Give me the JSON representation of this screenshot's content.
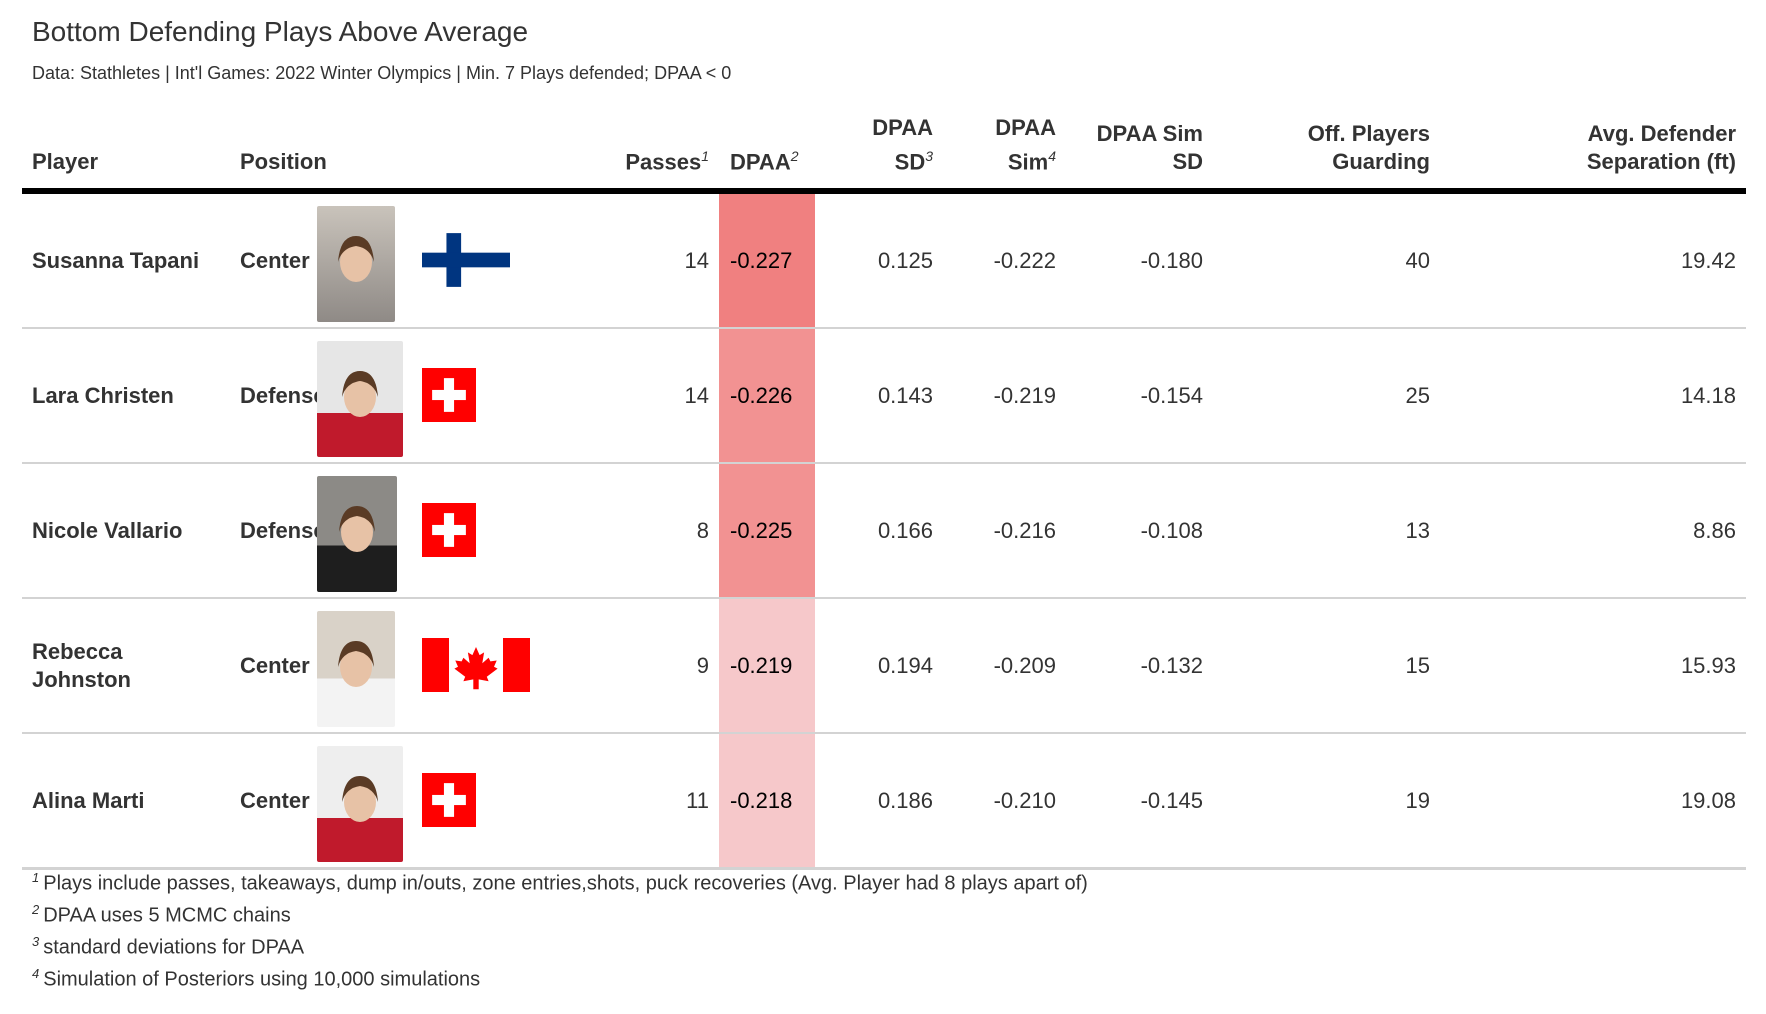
{
  "title": "Bottom Defending Plays Above Average",
  "subtitle": "Data: Stathletes | Int'l Games: 2022 Winter Olympics | Min. 7 Plays defended; DPAA < 0",
  "colors": {
    "dpaa_strong": "#f08080",
    "dpaa_medium": "#f29292",
    "dpaa_light": "#f6c8ca",
    "rule": "#000000",
    "row_border": "#d3d3d3"
  },
  "headers": {
    "player": "Player",
    "position": "Position",
    "passes": "Passes",
    "passes_note": "1",
    "dpaa": "DPAA",
    "dpaa_note": "2",
    "dpaa_sd_l1": "DPAA",
    "dpaa_sd_l2": "SD",
    "dpaa_sd_note": "3",
    "dpaa_sim_l1": "DPAA",
    "dpaa_sim_l2": "Sim",
    "dpaa_sim_note": "4",
    "sim_sd_l1": "DPAA Sim",
    "sim_sd_l2": "SD",
    "off_l1": "Off. Players",
    "off_l2": "Guarding",
    "sep_l1": "Avg. Defender",
    "sep_l2": "Separation (ft)"
  },
  "chart_data": {
    "type": "table",
    "columns": [
      "Player",
      "Position",
      "Passes",
      "DPAA",
      "DPAA SD",
      "DPAA Sim",
      "DPAA Sim SD",
      "Off. Players Guarding",
      "Avg. Defender Separation (ft)"
    ],
    "rows": [
      {
        "player": "Susanna Tapani",
        "position": "Center",
        "flag": "finland-flag-icon",
        "passes": "14",
        "dpaa": "-0.227",
        "dpaa_sd": "0.125",
        "dpaa_sim": "-0.222",
        "sim_sd": "-0.180",
        "off_guarding": "40",
        "separation": "19.42"
      },
      {
        "player": "Lara Christen",
        "position": "Defense",
        "flag": "switzerland-flag-icon",
        "passes": "14",
        "dpaa": "-0.226",
        "dpaa_sd": "0.143",
        "dpaa_sim": "-0.219",
        "sim_sd": "-0.154",
        "off_guarding": "25",
        "separation": "14.18"
      },
      {
        "player": "Nicole Vallario",
        "position": "Defense",
        "flag": "switzerland-flag-icon",
        "passes": "8",
        "dpaa": "-0.225",
        "dpaa_sd": "0.166",
        "dpaa_sim": "-0.216",
        "sim_sd": "-0.108",
        "off_guarding": "13",
        "separation": "8.86"
      },
      {
        "player": "Rebecca Johnston",
        "position": "Center",
        "flag": "canada-flag-icon",
        "passes": "9",
        "dpaa": "-0.219",
        "dpaa_sd": "0.194",
        "dpaa_sim": "-0.209",
        "sim_sd": "-0.132",
        "off_guarding": "15",
        "separation": "15.93"
      },
      {
        "player": "Alina Marti",
        "position": "Center",
        "flag": "switzerland-flag-icon",
        "passes": "11",
        "dpaa": "-0.218",
        "dpaa_sd": "0.186",
        "dpaa_sim": "-0.210",
        "sim_sd": "-0.145",
        "off_guarding": "19",
        "separation": "19.08"
      }
    ]
  },
  "footnotes": [
    {
      "mark": "1",
      "text": "Plays include passes, takeaways, dump in/outs, zone entries,shots, puck recoveries (Avg. Player had 8 plays apart of)"
    },
    {
      "mark": "2",
      "text": "DPAA uses 5 MCMC chains"
    },
    {
      "mark": "3",
      "text": "standard deviations for DPAA"
    },
    {
      "mark": "4",
      "text": "Simulation of Posteriors using 10,000 simulations"
    }
  ]
}
